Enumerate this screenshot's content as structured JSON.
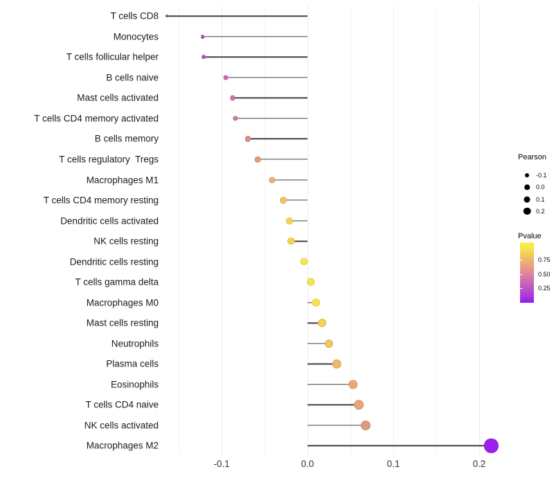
{
  "chart_data": {
    "type": "lollipop",
    "title": "",
    "xlabel": "",
    "ylabel": "",
    "grid": "vertical-only",
    "xlim": [
      -0.185,
      0.245
    ],
    "x_ticks": [
      {
        "label": "-0.1",
        "value": -0.1
      },
      {
        "label": "0.0",
        "value": 0.0
      },
      {
        "label": "0.1",
        "value": 0.1
      },
      {
        "label": "0.2",
        "value": 0.2
      }
    ],
    "gridline_values": [
      -0.15,
      -0.1,
      -0.05,
      0.0,
      0.05,
      0.1,
      0.15,
      0.2
    ],
    "rows": [
      {
        "label": "T cells CD8",
        "pearson": -0.164,
        "pvalue": 0.15
      },
      {
        "label": "Monocytes",
        "pearson": -0.122,
        "pvalue": 0.22
      },
      {
        "label": "T cells follicular helper",
        "pearson": -0.121,
        "pvalue": 0.24
      },
      {
        "label": "B cells naive",
        "pearson": -0.095,
        "pvalue": 0.38
      },
      {
        "label": "Mast cells activated",
        "pearson": -0.087,
        "pvalue": 0.42
      },
      {
        "label": "T cells CD4 memory activated",
        "pearson": -0.084,
        "pvalue": 0.43
      },
      {
        "label": "B cells memory",
        "pearson": -0.069,
        "pvalue": 0.55
      },
      {
        "label": "T cells regulatory  Tregs",
        "pearson": -0.058,
        "pvalue": 0.62
      },
      {
        "label": "Macrophages M1",
        "pearson": -0.041,
        "pvalue": 0.72
      },
      {
        "label": "T cells CD4 memory resting",
        "pearson": -0.028,
        "pvalue": 0.82
      },
      {
        "label": "Dendritic cells activated",
        "pearson": -0.021,
        "pvalue": 0.88
      },
      {
        "label": "NK cells resting",
        "pearson": -0.019,
        "pvalue": 0.88
      },
      {
        "label": "Dendritic cells resting",
        "pearson": -0.004,
        "pvalue": 0.96
      },
      {
        "label": "T cells gamma delta",
        "pearson": 0.004,
        "pvalue": 0.96
      },
      {
        "label": "Macrophages M0",
        "pearson": 0.01,
        "pvalue": 0.94
      },
      {
        "label": "Mast cells resting",
        "pearson": 0.017,
        "pvalue": 0.87
      },
      {
        "label": "Neutrophils",
        "pearson": 0.025,
        "pvalue": 0.82
      },
      {
        "label": "Plasma cells",
        "pearson": 0.034,
        "pvalue": 0.76
      },
      {
        "label": "Eosinophils",
        "pearson": 0.053,
        "pvalue": 0.68
      },
      {
        "label": "T cells CD4 naive",
        "pearson": 0.06,
        "pvalue": 0.66
      },
      {
        "label": "NK cells activated",
        "pearson": 0.068,
        "pvalue": 0.6
      },
      {
        "label": "Macrophages M2",
        "pearson": 0.214,
        "pvalue": 0.03
      }
    ],
    "legend_size": {
      "title": "Pearson",
      "entries": [
        {
          "label": "-0.1",
          "diameter": 6
        },
        {
          "label": "0.0",
          "diameter": 7.5
        },
        {
          "label": "0.1",
          "diameter": 9
        },
        {
          "label": "0.2",
          "diameter": 10.5
        }
      ]
    },
    "legend_color": {
      "title": "Pvalue",
      "ticks": [
        {
          "label": "0.75",
          "value": 0.75
        },
        {
          "label": "0.50",
          "value": 0.5
        },
        {
          "label": "0.25",
          "value": 0.25
        }
      ],
      "domain": [
        0.0,
        1.05
      ],
      "gradient_stops": [
        {
          "t": 0.0,
          "color": "#9916EF"
        },
        {
          "t": 0.1,
          "color": "#A636DF"
        },
        {
          "t": 0.2,
          "color": "#B44BC8"
        },
        {
          "t": 0.3,
          "color": "#C75FBC"
        },
        {
          "t": 0.4,
          "color": "#D273AB"
        },
        {
          "t": 0.5,
          "color": "#DD8897"
        },
        {
          "t": 0.58,
          "color": "#E49A82"
        },
        {
          "t": 0.66,
          "color": "#E9AB76"
        },
        {
          "t": 0.74,
          "color": "#EFBE64"
        },
        {
          "t": 0.82,
          "color": "#F3CF55"
        },
        {
          "t": 0.9,
          "color": "#F8E44C"
        },
        {
          "t": 1.0,
          "color": "#FAF148"
        }
      ]
    },
    "colors": {
      "stem": "#404040",
      "grid_major": "#ececec",
      "grid_minor": "#f4f4f4",
      "axis_text": "#333333",
      "label_text": "#1a1a1a",
      "background": "#ffffff"
    }
  }
}
